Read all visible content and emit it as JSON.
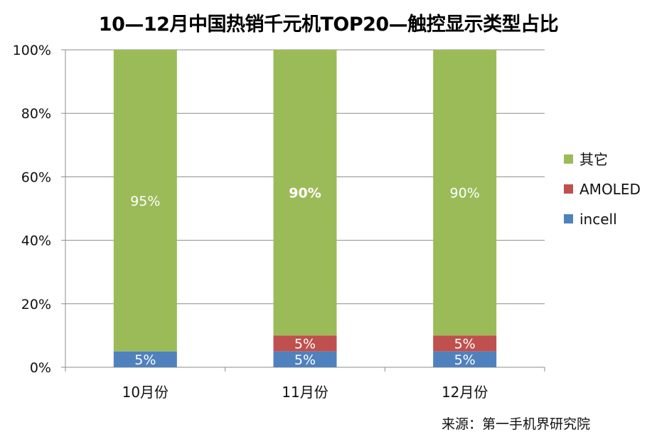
{
  "title": "10—12月中国热销千元机TOP20—触控显示类型占比",
  "source": "来源：第一手机界研究院",
  "chart_data": {
    "type": "bar",
    "stacked": true,
    "categories": [
      "10月份",
      "11月份",
      "12月份"
    ],
    "ylim": [
      0,
      100
    ],
    "yticks": [
      "0%",
      "20%",
      "40%",
      "60%",
      "80%",
      "100%"
    ],
    "grid": true,
    "legend_position": "right",
    "series": [
      {
        "name": "incell",
        "color": "#4f81bd",
        "values": [
          5,
          5,
          5
        ],
        "labels": [
          "5%",
          "5%",
          "5%"
        ]
      },
      {
        "name": "AMOLED",
        "color": "#c0504d",
        "values": [
          0,
          5,
          5
        ],
        "labels": [
          "",
          "5%",
          "5%"
        ]
      },
      {
        "name": "其它",
        "color": "#9bbb59",
        "values": [
          95,
          90,
          90
        ],
        "labels": [
          "95%",
          "90%",
          "90%"
        ]
      }
    ]
  }
}
